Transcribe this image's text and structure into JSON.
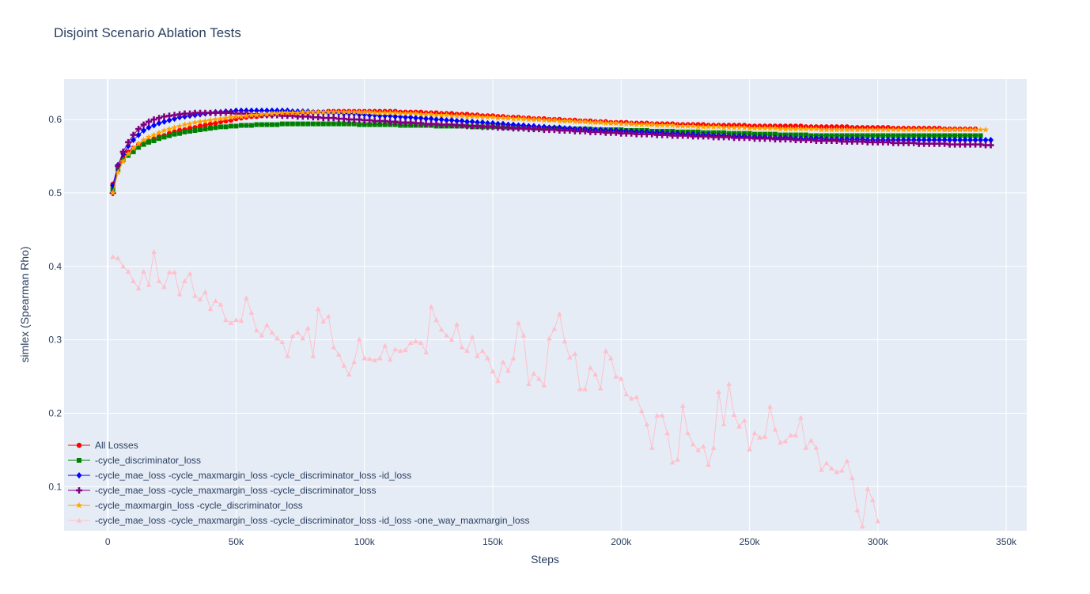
{
  "chart_data": {
    "type": "line",
    "title": "Disjoint Scenario Ablation Tests",
    "xlabel": "Steps",
    "ylabel": "simlex (Spearman Rho)",
    "xlim": [
      -17000,
      358000
    ],
    "ylim": [
      0.04,
      0.655
    ],
    "x_ticks": [
      0,
      50000,
      100000,
      150000,
      200000,
      250000,
      300000,
      350000
    ],
    "x_tick_labels": [
      "0",
      "50k",
      "100k",
      "150k",
      "200k",
      "250k",
      "300k",
      "350k"
    ],
    "y_ticks": [
      0.1,
      0.2,
      0.3,
      0.4,
      0.5,
      0.6
    ],
    "y_tick_labels": [
      "0.1",
      "0.2",
      "0.3",
      "0.4",
      "0.5",
      "0.6"
    ],
    "grid": true,
    "legend_position": "bottom-left",
    "x_start": 2000,
    "x_step": 2000,
    "series": [
      {
        "name": "All Losses",
        "color": "#ff0000",
        "marker": "circle",
        "values": [
          0.512,
          0.535,
          0.548,
          0.556,
          0.561,
          0.566,
          0.569,
          0.571,
          0.574,
          0.577,
          0.578,
          0.581,
          0.583,
          0.585,
          0.586,
          0.588,
          0.589,
          0.591,
          0.592,
          0.594,
          0.595,
          0.597,
          0.598,
          0.599,
          0.601,
          0.602,
          0.603,
          0.604,
          0.604,
          0.605,
          0.606,
          0.606,
          0.607,
          0.607,
          0.608,
          0.608,
          0.609,
          0.609,
          0.609,
          0.61,
          0.61,
          0.61,
          0.611,
          0.611,
          0.611,
          0.611,
          0.611,
          0.611,
          0.611,
          0.611,
          0.611,
          0.611,
          0.611,
          0.611,
          0.611,
          0.611,
          0.61,
          0.61,
          0.61,
          0.61,
          0.61,
          0.609,
          0.609,
          0.609,
          0.608,
          0.608,
          0.608,
          0.607,
          0.607,
          0.607,
          0.606,
          0.606,
          0.605,
          0.605,
          0.605,
          0.604,
          0.604,
          0.603,
          0.603,
          0.603,
          0.602,
          0.602,
          0.601,
          0.601,
          0.601,
          0.6,
          0.6,
          0.6,
          0.599,
          0.599,
          0.599,
          0.598,
          0.598,
          0.598,
          0.597,
          0.597,
          0.597,
          0.596,
          0.596,
          0.596,
          0.596,
          0.595,
          0.595,
          0.595,
          0.595,
          0.594,
          0.594,
          0.594,
          0.594,
          0.594,
          0.593,
          0.593,
          0.593,
          0.593,
          0.593,
          0.593,
          0.592,
          0.592,
          0.592,
          0.592,
          0.592,
          0.592,
          0.592,
          0.592,
          0.591,
          0.591,
          0.591,
          0.591,
          0.591,
          0.591,
          0.591,
          0.591,
          0.591,
          0.591,
          0.591,
          0.59,
          0.59,
          0.59,
          0.59,
          0.59,
          0.59,
          0.59,
          0.59,
          0.59,
          0.589,
          0.589,
          0.589,
          0.589,
          0.589,
          0.589,
          0.589,
          0.589,
          0.588,
          0.588,
          0.588,
          0.588,
          0.588,
          0.588,
          0.588,
          0.588,
          0.588,
          0.588,
          0.587,
          0.587,
          0.587,
          0.587,
          0.587,
          0.587,
          0.587
        ]
      },
      {
        "name": "-cycle_discriminator_loss",
        "color": "#008000",
        "marker": "square",
        "values": [
          0.505,
          0.532,
          0.545,
          0.551,
          0.556,
          0.562,
          0.566,
          0.569,
          0.571,
          0.574,
          0.576,
          0.578,
          0.58,
          0.581,
          0.583,
          0.584,
          0.585,
          0.586,
          0.587,
          0.588,
          0.589,
          0.59,
          0.59,
          0.591,
          0.591,
          0.592,
          0.592,
          0.592,
          0.593,
          0.593,
          0.593,
          0.593,
          0.593,
          0.594,
          0.594,
          0.594,
          0.594,
          0.594,
          0.594,
          0.594,
          0.594,
          0.594,
          0.594,
          0.594,
          0.594,
          0.594,
          0.594,
          0.594,
          0.593,
          0.593,
          0.593,
          0.593,
          0.593,
          0.593,
          0.593,
          0.593,
          0.592,
          0.592,
          0.592,
          0.592,
          0.592,
          0.592,
          0.592,
          0.591,
          0.591,
          0.591,
          0.591,
          0.591,
          0.591,
          0.591,
          0.59,
          0.59,
          0.59,
          0.59,
          0.59,
          0.59,
          0.589,
          0.589,
          0.589,
          0.589,
          0.589,
          0.589,
          0.588,
          0.588,
          0.588,
          0.588,
          0.588,
          0.588,
          0.587,
          0.587,
          0.587,
          0.587,
          0.587,
          0.587,
          0.586,
          0.586,
          0.586,
          0.586,
          0.586,
          0.586,
          0.585,
          0.585,
          0.585,
          0.585,
          0.585,
          0.584,
          0.584,
          0.584,
          0.584,
          0.584,
          0.583,
          0.583,
          0.583,
          0.583,
          0.583,
          0.582,
          0.582,
          0.582,
          0.582,
          0.582,
          0.581,
          0.581,
          0.581,
          0.581,
          0.581,
          0.58,
          0.58,
          0.58,
          0.58,
          0.58,
          0.579,
          0.579,
          0.579,
          0.579,
          0.579,
          0.579,
          0.578,
          0.578,
          0.578,
          0.578,
          0.578,
          0.578,
          0.578,
          0.578,
          0.578,
          0.578,
          0.578,
          0.578,
          0.578,
          0.578,
          0.578,
          0.578,
          0.578,
          0.578,
          0.578,
          0.578,
          0.578,
          0.578,
          0.578,
          0.578,
          0.578,
          0.578,
          0.578,
          0.578,
          0.578,
          0.578,
          0.578,
          0.578,
          0.578,
          0.578
        ]
      },
      {
        "name": "-cycle_mae_loss  -cycle_maxmargin_loss  -cycle_discriminator_loss  -id_loss",
        "color": "#0000ff",
        "marker": "diamond",
        "values": [
          0.51,
          0.538,
          0.553,
          0.564,
          0.572,
          0.579,
          0.585,
          0.589,
          0.592,
          0.595,
          0.597,
          0.599,
          0.601,
          0.603,
          0.604,
          0.605,
          0.606,
          0.607,
          0.608,
          0.609,
          0.61,
          0.61,
          0.611,
          0.611,
          0.612,
          0.612,
          0.612,
          0.612,
          0.612,
          0.612,
          0.612,
          0.612,
          0.612,
          0.612,
          0.612,
          0.611,
          0.611,
          0.611,
          0.611,
          0.61,
          0.61,
          0.61,
          0.609,
          0.609,
          0.609,
          0.608,
          0.608,
          0.608,
          0.607,
          0.607,
          0.606,
          0.606,
          0.605,
          0.605,
          0.605,
          0.604,
          0.604,
          0.603,
          0.603,
          0.602,
          0.602,
          0.601,
          0.601,
          0.6,
          0.6,
          0.599,
          0.599,
          0.598,
          0.598,
          0.597,
          0.597,
          0.596,
          0.596,
          0.595,
          0.595,
          0.594,
          0.594,
          0.593,
          0.593,
          0.592,
          0.592,
          0.591,
          0.591,
          0.59,
          0.59,
          0.589,
          0.589,
          0.589,
          0.588,
          0.588,
          0.587,
          0.587,
          0.587,
          0.586,
          0.586,
          0.586,
          0.585,
          0.585,
          0.585,
          0.584,
          0.584,
          0.584,
          0.583,
          0.583,
          0.583,
          0.582,
          0.582,
          0.582,
          0.581,
          0.581,
          0.581,
          0.58,
          0.58,
          0.58,
          0.579,
          0.579,
          0.579,
          0.578,
          0.578,
          0.578,
          0.577,
          0.577,
          0.577,
          0.577,
          0.576,
          0.576,
          0.576,
          0.576,
          0.575,
          0.575,
          0.575,
          0.575,
          0.575,
          0.574,
          0.574,
          0.574,
          0.574,
          0.574,
          0.574,
          0.573,
          0.573,
          0.573,
          0.573,
          0.573,
          0.573,
          0.573,
          0.573,
          0.572,
          0.572,
          0.572,
          0.572,
          0.572,
          0.572,
          0.572,
          0.572,
          0.572,
          0.572,
          0.572,
          0.572,
          0.572,
          0.572,
          0.572,
          0.572,
          0.572,
          0.572,
          0.572,
          0.572,
          0.572,
          0.572,
          0.572,
          0.572,
          0.572
        ]
      },
      {
        "name": "-cycle_mae_loss  -cycle_maxmargin_loss -cycle_discriminator_loss",
        "color": "#800080",
        "marker": "cross",
        "values": [
          0.5,
          0.537,
          0.556,
          0.569,
          0.579,
          0.587,
          0.593,
          0.597,
          0.6,
          0.602,
          0.604,
          0.605,
          0.606,
          0.607,
          0.608,
          0.608,
          0.609,
          0.609,
          0.609,
          0.609,
          0.609,
          0.609,
          0.609,
          0.609,
          0.608,
          0.608,
          0.608,
          0.607,
          0.607,
          0.607,
          0.606,
          0.606,
          0.606,
          0.605,
          0.605,
          0.605,
          0.604,
          0.604,
          0.604,
          0.603,
          0.603,
          0.602,
          0.602,
          0.602,
          0.601,
          0.601,
          0.6,
          0.6,
          0.6,
          0.599,
          0.599,
          0.598,
          0.598,
          0.598,
          0.597,
          0.597,
          0.596,
          0.596,
          0.596,
          0.595,
          0.595,
          0.594,
          0.594,
          0.594,
          0.593,
          0.593,
          0.593,
          0.592,
          0.592,
          0.591,
          0.591,
          0.591,
          0.59,
          0.59,
          0.59,
          0.589,
          0.589,
          0.589,
          0.588,
          0.588,
          0.588,
          0.587,
          0.587,
          0.587,
          0.586,
          0.586,
          0.586,
          0.585,
          0.585,
          0.585,
          0.584,
          0.584,
          0.584,
          0.583,
          0.583,
          0.583,
          0.582,
          0.582,
          0.582,
          0.581,
          0.581,
          0.581,
          0.58,
          0.58,
          0.58,
          0.58,
          0.579,
          0.579,
          0.579,
          0.578,
          0.578,
          0.578,
          0.578,
          0.577,
          0.577,
          0.577,
          0.577,
          0.576,
          0.576,
          0.576,
          0.576,
          0.575,
          0.575,
          0.575,
          0.575,
          0.574,
          0.574,
          0.574,
          0.574,
          0.573,
          0.573,
          0.573,
          0.573,
          0.572,
          0.572,
          0.572,
          0.572,
          0.571,
          0.571,
          0.571,
          0.571,
          0.571,
          0.57,
          0.57,
          0.57,
          0.57,
          0.57,
          0.569,
          0.569,
          0.569,
          0.569,
          0.569,
          0.568,
          0.568,
          0.568,
          0.568,
          0.568,
          0.567,
          0.567,
          0.567,
          0.567,
          0.567,
          0.567,
          0.566,
          0.566,
          0.566,
          0.566,
          0.566,
          0.566,
          0.566,
          0.565,
          0.565
        ]
      },
      {
        "name": "-cycle_maxmargin_loss -cycle_discriminator_loss",
        "color": "#ffa500",
        "marker": "star",
        "values": [
          0.5,
          0.528,
          0.543,
          0.553,
          0.561,
          0.567,
          0.572,
          0.576,
          0.579,
          0.582,
          0.585,
          0.587,
          0.589,
          0.591,
          0.593,
          0.594,
          0.596,
          0.597,
          0.598,
          0.599,
          0.6,
          0.601,
          0.602,
          0.603,
          0.604,
          0.604,
          0.605,
          0.606,
          0.606,
          0.607,
          0.607,
          0.608,
          0.608,
          0.609,
          0.609,
          0.609,
          0.609,
          0.61,
          0.61,
          0.61,
          0.61,
          0.61,
          0.61,
          0.61,
          0.61,
          0.61,
          0.61,
          0.61,
          0.61,
          0.61,
          0.61,
          0.609,
          0.609,
          0.609,
          0.609,
          0.609,
          0.608,
          0.608,
          0.608,
          0.608,
          0.607,
          0.607,
          0.607,
          0.606,
          0.606,
          0.606,
          0.605,
          0.605,
          0.605,
          0.604,
          0.604,
          0.604,
          0.603,
          0.603,
          0.603,
          0.602,
          0.602,
          0.602,
          0.601,
          0.601,
          0.601,
          0.6,
          0.6,
          0.6,
          0.599,
          0.599,
          0.599,
          0.598,
          0.598,
          0.598,
          0.597,
          0.597,
          0.597,
          0.596,
          0.596,
          0.596,
          0.595,
          0.595,
          0.595,
          0.594,
          0.594,
          0.594,
          0.593,
          0.593,
          0.593,
          0.593,
          0.592,
          0.592,
          0.592,
          0.592,
          0.591,
          0.591,
          0.591,
          0.591,
          0.59,
          0.59,
          0.59,
          0.59,
          0.59,
          0.589,
          0.589,
          0.589,
          0.589,
          0.589,
          0.588,
          0.588,
          0.588,
          0.588,
          0.588,
          0.588,
          0.587,
          0.587,
          0.587,
          0.587,
          0.587,
          0.587,
          0.587,
          0.587,
          0.586,
          0.586,
          0.586,
          0.586,
          0.586,
          0.586,
          0.586,
          0.586,
          0.586,
          0.586,
          0.586,
          0.586,
          0.586,
          0.586,
          0.586,
          0.586,
          0.586,
          0.586,
          0.586,
          0.586,
          0.586,
          0.586,
          0.586,
          0.586,
          0.586,
          0.586,
          0.586,
          0.586,
          0.586,
          0.586,
          0.586,
          0.586,
          0.586
        ]
      },
      {
        "name": "-cycle_mae_loss -cycle_maxmargin_loss -cycle_discriminator_loss -id_loss -one_way_maxmargin_loss",
        "color": "#ffc0cb",
        "marker": "triangle-up",
        "values": [
          0.413,
          0.411,
          0.4,
          0.393,
          0.38,
          0.37,
          0.393,
          0.375,
          0.42,
          0.38,
          0.372,
          0.392,
          0.392,
          0.362,
          0.38,
          0.39,
          0.36,
          0.355,
          0.365,
          0.342,
          0.353,
          0.348,
          0.327,
          0.323,
          0.327,
          0.326,
          0.357,
          0.337,
          0.313,
          0.306,
          0.32,
          0.31,
          0.302,
          0.297,
          0.278,
          0.305,
          0.31,
          0.302,
          0.316,
          0.278,
          0.342,
          0.325,
          0.332,
          0.29,
          0.28,
          0.265,
          0.253,
          0.27,
          0.301,
          0.275,
          0.274,
          0.272,
          0.275,
          0.292,
          0.273,
          0.287,
          0.285,
          0.286,
          0.296,
          0.298,
          0.296,
          0.283,
          0.345,
          0.327,
          0.314,
          0.306,
          0.3,
          0.321,
          0.29,
          0.285,
          0.304,
          0.278,
          0.285,
          0.275,
          0.257,
          0.244,
          0.27,
          0.258,
          0.275,
          0.323,
          0.306,
          0.24,
          0.254,
          0.247,
          0.238,
          0.302,
          0.315,
          0.335,
          0.298,
          0.276,
          0.281,
          0.233,
          0.233,
          0.262,
          0.253,
          0.234,
          0.285,
          0.275,
          0.25,
          0.247,
          0.226,
          0.22,
          0.222,
          0.203,
          0.185,
          0.153,
          0.197,
          0.197,
          0.173,
          0.133,
          0.137,
          0.21,
          0.173,
          0.158,
          0.15,
          0.155,
          0.13,
          0.153,
          0.229,
          0.185,
          0.24,
          0.198,
          0.182,
          0.19,
          0.151,
          0.173,
          0.167,
          0.168,
          0.209,
          0.178,
          0.16,
          0.162,
          0.17,
          0.17,
          0.194,
          0.153,
          0.163,
          0.153,
          0.123,
          0.132,
          0.125,
          0.12,
          0.122,
          0.135,
          0.112,
          0.068,
          0.046,
          0.097,
          0.082,
          0.053
        ]
      }
    ]
  }
}
